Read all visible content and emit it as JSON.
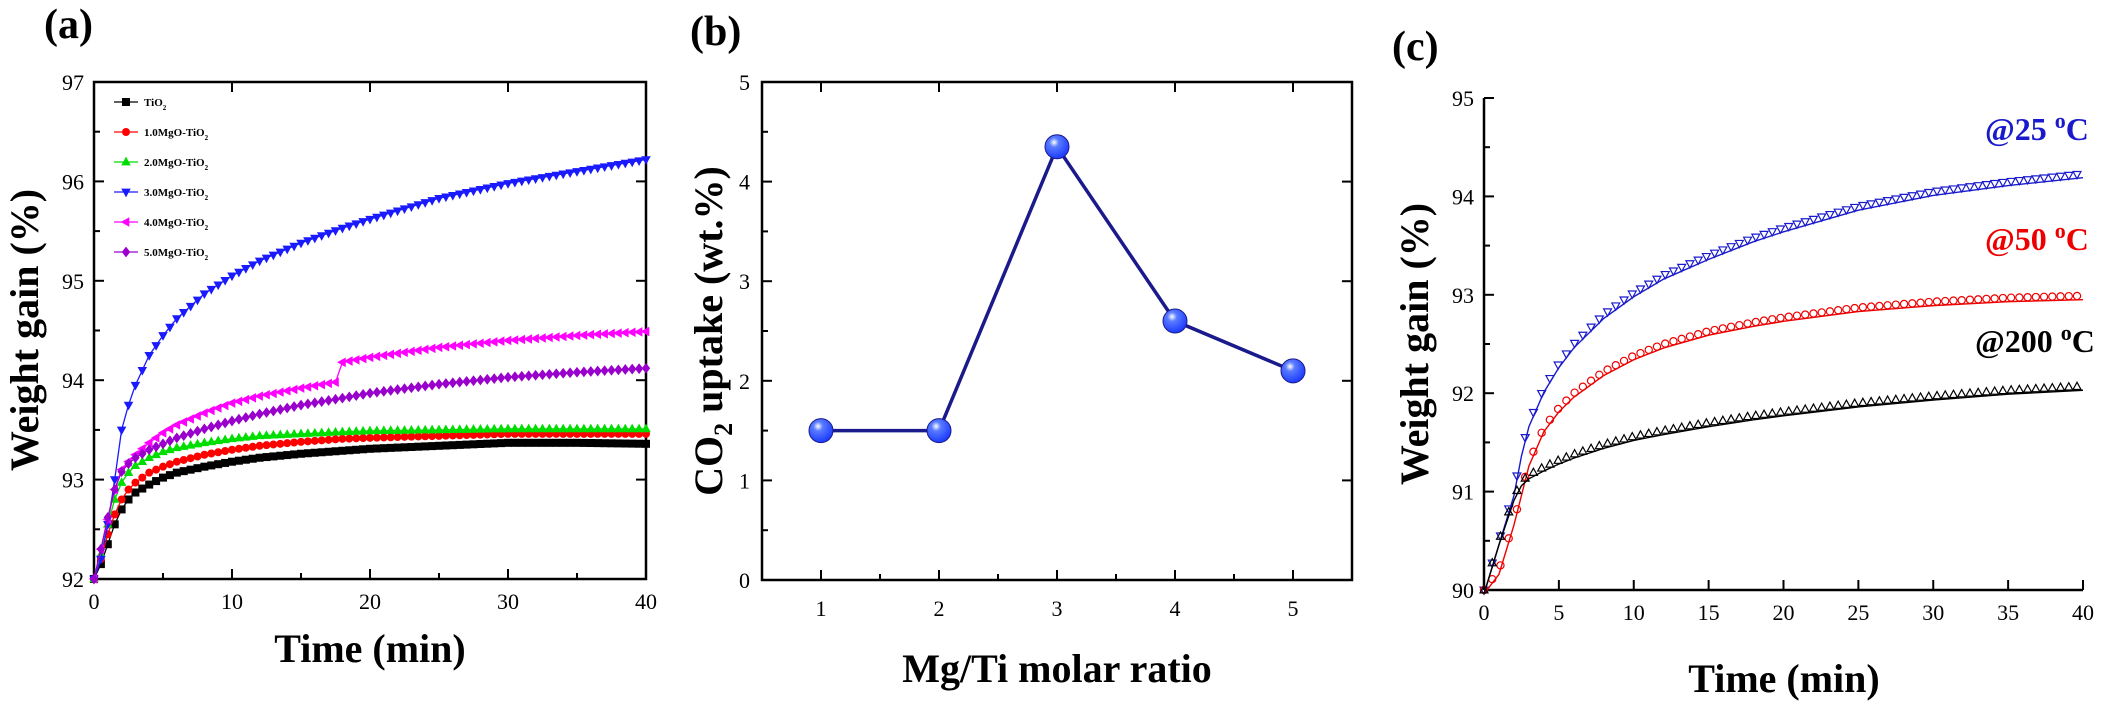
{
  "chart_data": [
    {
      "panel": "(a)",
      "type": "line",
      "xlabel": "Time (min)",
      "ylabel": "Weight gain (%)",
      "xlim": [
        0,
        40
      ],
      "ylim": [
        92,
        97
      ],
      "xticks": [
        "0",
        "10",
        "20",
        "30",
        "40"
      ],
      "yticks": [
        "92",
        "93",
        "94",
        "95",
        "96",
        "97"
      ],
      "legend_position": "top-left",
      "series": [
        {
          "name": "TiO2",
          "label_main": "TiO",
          "label_sub": "2",
          "color": "#000000",
          "marker": "square",
          "x": [
            0,
            0.5,
            1,
            1.5,
            2,
            2.5,
            3,
            4,
            5,
            6,
            8,
            10,
            12,
            15,
            18,
            20,
            25,
            30,
            35,
            40
          ],
          "y": [
            92.0,
            92.15,
            92.35,
            92.55,
            92.7,
            92.8,
            92.87,
            92.95,
            93.02,
            93.07,
            93.13,
            93.18,
            93.22,
            93.26,
            93.29,
            93.31,
            93.34,
            93.37,
            93.37,
            93.36
          ]
        },
        {
          "name": "1.0MgO-TiO2",
          "label_main": "1.0MgO-TiO",
          "label_sub": "2",
          "color": "#ff0000",
          "marker": "circle",
          "x": [
            0,
            0.5,
            1,
            1.5,
            2,
            2.5,
            3,
            4,
            5,
            6,
            8,
            10,
            12,
            15,
            18,
            20,
            25,
            30,
            35,
            40
          ],
          "y": [
            92.0,
            92.2,
            92.45,
            92.65,
            92.8,
            92.9,
            92.97,
            93.07,
            93.13,
            93.18,
            93.25,
            93.3,
            93.34,
            93.38,
            93.41,
            93.42,
            93.44,
            93.46,
            93.46,
            93.46
          ]
        },
        {
          "name": "2.0MgO-TiO2",
          "label_main": "2.0MgO-TiO",
          "label_sub": "2",
          "color": "#00dd00",
          "marker": "triangle-up",
          "x": [
            0,
            0.5,
            1,
            1.5,
            2,
            2.5,
            3,
            4,
            5,
            6,
            8,
            10,
            12,
            15,
            18,
            20,
            25,
            30,
            35,
            40
          ],
          "y": [
            92.0,
            92.25,
            92.55,
            92.8,
            92.97,
            93.07,
            93.14,
            93.22,
            93.28,
            93.32,
            93.37,
            93.41,
            93.44,
            93.46,
            93.48,
            93.49,
            93.5,
            93.51,
            93.51,
            93.51
          ]
        },
        {
          "name": "3.0MgO-TiO2",
          "label_main": "3.0MgO-TiO",
          "label_sub": "2",
          "color": "#1a1aff",
          "marker": "triangle-down",
          "x": [
            0,
            0.5,
            1,
            1.5,
            2,
            2.5,
            3,
            4,
            5,
            6,
            8,
            10,
            12,
            15,
            18,
            20,
            25,
            30,
            35,
            40
          ],
          "y": [
            92.0,
            92.2,
            92.55,
            93.0,
            93.5,
            93.75,
            93.95,
            94.25,
            94.45,
            94.62,
            94.87,
            95.05,
            95.2,
            95.38,
            95.53,
            95.62,
            95.83,
            95.98,
            96.1,
            96.22
          ]
        },
        {
          "name": "4.0MgO-TiO2",
          "label_main": "4.0MgO-TiO",
          "label_sub": "2",
          "color": "#ff00ff",
          "marker": "triangle-left",
          "x": [
            0,
            0.5,
            1,
            1.5,
            2,
            2.5,
            3,
            4,
            5,
            6,
            8,
            10,
            12,
            15,
            17.5,
            18,
            20,
            25,
            30,
            35,
            40
          ],
          "y": [
            92.0,
            92.3,
            92.6,
            92.9,
            93.1,
            93.18,
            93.25,
            93.37,
            93.47,
            93.55,
            93.67,
            93.77,
            93.84,
            93.92,
            93.98,
            94.18,
            94.23,
            94.33,
            94.4,
            94.45,
            94.49
          ]
        },
        {
          "name": "5.0MgO-TiO2",
          "label_main": "5.0MgO-TiO",
          "label_sub": "2",
          "color": "#9900cc",
          "marker": "diamond",
          "x": [
            0,
            0.5,
            1,
            1.5,
            2,
            2.5,
            3,
            4,
            5,
            6,
            8,
            10,
            12,
            15,
            18,
            20,
            25,
            30,
            35,
            40
          ],
          "y": [
            92.0,
            92.3,
            92.62,
            92.9,
            93.08,
            93.16,
            93.22,
            93.3,
            93.36,
            93.42,
            93.51,
            93.59,
            93.66,
            93.75,
            93.82,
            93.87,
            93.96,
            94.03,
            94.08,
            94.12
          ]
        }
      ]
    },
    {
      "panel": "(b)",
      "type": "line",
      "xlabel": "Mg/Ti molar ratio",
      "ylabel_parts": [
        "CO",
        "2",
        " uptake (wt.%)"
      ],
      "xlim": [
        0.5,
        5.5
      ],
      "ylim": [
        0,
        5
      ],
      "xticks": [
        "1",
        "2",
        "3",
        "4",
        "5"
      ],
      "yticks": [
        "0",
        "1",
        "2",
        "3",
        "4",
        "5"
      ],
      "color": "#1a1a8c",
      "marker_color": "#1f3fff",
      "categories": [
        1,
        2,
        3,
        4,
        5
      ],
      "values": [
        1.5,
        1.5,
        4.35,
        2.6,
        2.1
      ]
    },
    {
      "panel": "(c)",
      "type": "line",
      "xlabel": "Time (min)",
      "ylabel": "Weight gain (%)",
      "xlim": [
        0,
        40
      ],
      "ylim": [
        90,
        95
      ],
      "xticks": [
        "0",
        "5",
        "10",
        "15",
        "20",
        "25",
        "30",
        "35",
        "40"
      ],
      "yticks": [
        "90",
        "91",
        "92",
        "93",
        "94",
        "95"
      ],
      "series": [
        {
          "annotation": "@25 oC",
          "annot_main": "@25 ",
          "annot_sup": "o",
          "annot_tail": "C",
          "color": "#1a1acc",
          "marker": "triangle-down",
          "x": [
            0,
            1,
            2,
            2.5,
            3,
            4,
            5,
            6,
            8,
            10,
            12,
            15,
            18,
            20,
            25,
            30,
            35,
            40
          ],
          "y": [
            90.0,
            90.5,
            91.0,
            91.4,
            91.7,
            92.05,
            92.3,
            92.5,
            92.8,
            93.02,
            93.2,
            93.4,
            93.58,
            93.68,
            93.9,
            94.05,
            94.15,
            94.23
          ]
        },
        {
          "annotation": "@50 oC",
          "annot_main": "@50 ",
          "annot_sup": "o",
          "annot_tail": "C",
          "color": "#ee0000",
          "marker": "circle",
          "x": [
            0,
            1,
            2,
            2.5,
            3,
            4,
            5,
            6,
            8,
            10,
            12,
            15,
            18,
            20,
            25,
            30,
            35,
            40
          ],
          "y": [
            90.0,
            90.2,
            90.7,
            91.0,
            91.3,
            91.65,
            91.85,
            92.0,
            92.22,
            92.38,
            92.5,
            92.63,
            92.72,
            92.77,
            92.87,
            92.93,
            92.97,
            92.99
          ]
        },
        {
          "annotation": "@200 oC",
          "annot_main": "@200 ",
          "annot_sup": "o",
          "annot_tail": "C",
          "color": "#000000",
          "marker": "triangle-up",
          "x": [
            0,
            1,
            2,
            2.5,
            3,
            4,
            5,
            6,
            8,
            10,
            12,
            15,
            18,
            20,
            25,
            30,
            35,
            40
          ],
          "y": [
            90.0,
            90.5,
            90.95,
            91.1,
            91.17,
            91.25,
            91.32,
            91.38,
            91.48,
            91.56,
            91.62,
            91.7,
            91.77,
            91.81,
            91.9,
            91.97,
            92.03,
            92.07
          ]
        }
      ]
    }
  ]
}
